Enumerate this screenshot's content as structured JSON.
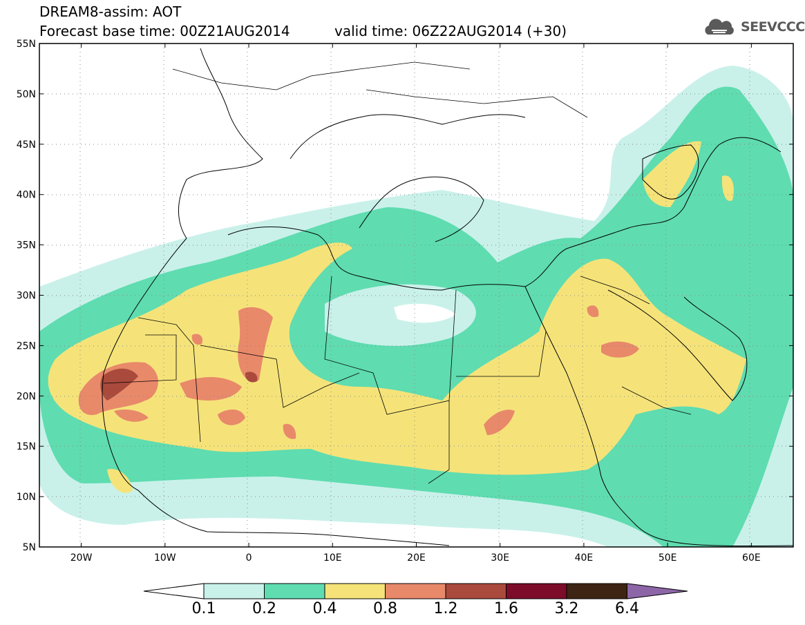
{
  "header": {
    "title": "DREAM8-assim: AOT",
    "base_time": "Forecast base time: 00Z21AUG2014",
    "valid_time": "valid time: 06Z22AUG2014 (+30)",
    "logo_text": "SEEVCCC",
    "logo_icon": "cloud-logo-icon"
  },
  "map": {
    "lon_labels": [
      "20W",
      "10W",
      "0",
      "10E",
      "20E",
      "30E",
      "40E",
      "50E",
      "60E"
    ],
    "lon_values": [
      -20,
      -10,
      0,
      10,
      20,
      30,
      40,
      50,
      60
    ],
    "lat_labels": [
      "5N",
      "10N",
      "15N",
      "20N",
      "25N",
      "30N",
      "35N",
      "40N",
      "45N",
      "50N",
      "55N"
    ],
    "lat_values": [
      5,
      10,
      15,
      20,
      25,
      30,
      35,
      40,
      45,
      50,
      55
    ],
    "lon_range": [
      -25,
      65
    ],
    "lat_range": [
      5,
      55
    ]
  },
  "colorbar": {
    "labels": [
      "0.1",
      "0.2",
      "0.4",
      "0.8",
      "1.2",
      "1.6",
      "3.2",
      "6.4"
    ],
    "colors": [
      "#ffffff",
      "#c9f1ea",
      "#5fdcb0",
      "#f5e37a",
      "#e8896a",
      "#a94a3c",
      "#7c0c2a",
      "#3e2413",
      "#8d66a8"
    ]
  }
}
